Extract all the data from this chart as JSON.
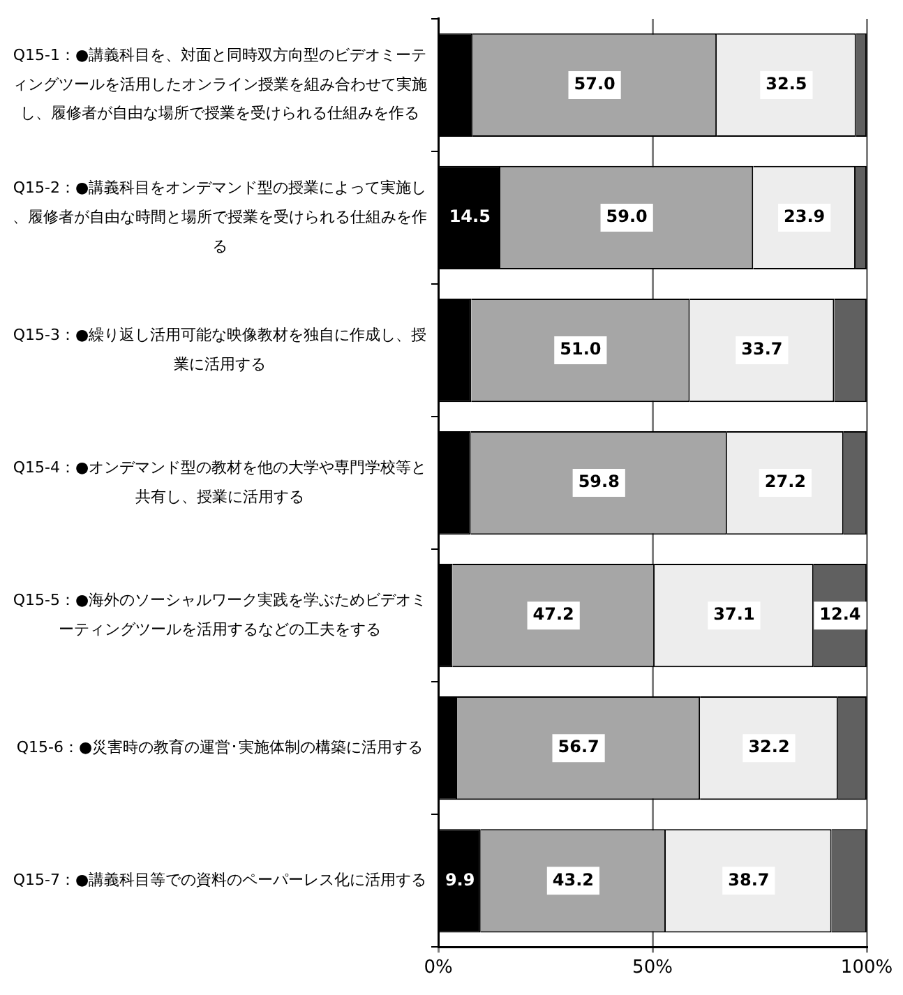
{
  "chart_data": {
    "type": "bar",
    "orientation": "horizontal",
    "stacked": true,
    "categories": [
      "Q15-1：●講義科目を、対面と同時双方向型のビデオミーティングツールを活用したオンライン授業を組み合わせて実施し、履修者が自由な場所で授業を受けられる仕組みを作る",
      "Q15-2：●講義科目をオンデマンド型の授業によって実施し、履修者が自由な時間と場所で授業を受けられる仕組みを作る",
      "Q15-3：●繰り返し活用可能な映像教材を独自に作成し、授業に活用する",
      "Q15-4：●オンデマンド型の教材を他の大学や専門学校等と共有し、授業に活用する",
      "Q15-5：●海外のソーシャルワーク実践を学ぶためビデオミーティングツールを活用するなどの工夫をする",
      "Q15-6：●災害時の教育の運営･実施体制の構築に活用する",
      "Q15-7：●講義科目等での資料のペーパーレス化に活用する"
    ],
    "series": [
      {
        "color": "#000000",
        "values": [
          8.0,
          14.5,
          7.7,
          7.6,
          3.3,
          4.4,
          9.9
        ],
        "value_labels": [
          null,
          "14.5",
          null,
          null,
          null,
          null,
          "9.9"
        ]
      },
      {
        "color": "#a6a6a6",
        "values": [
          57.0,
          59.0,
          51.0,
          59.8,
          47.2,
          56.7,
          43.2
        ],
        "value_labels": [
          "57.0",
          "59.0",
          "51.0",
          "59.8",
          "47.2",
          "56.7",
          "43.2"
        ]
      },
      {
        "color": "#ededed",
        "values": [
          32.5,
          23.9,
          33.7,
          27.2,
          37.1,
          32.2,
          38.7
        ],
        "value_labels": [
          "32.5",
          "23.9",
          "33.7",
          "27.2",
          "37.1",
          "32.2",
          "38.7"
        ]
      },
      {
        "color": "#606060",
        "values": [
          2.5,
          2.6,
          7.6,
          5.4,
          12.4,
          6.7,
          8.2
        ],
        "value_labels": [
          null,
          null,
          null,
          null,
          "12.4",
          null,
          null
        ]
      }
    ],
    "xlim": [
      0,
      100
    ],
    "xticks": [
      {
        "value": 0,
        "label": "0%"
      },
      {
        "value": 50,
        "label": "50%"
      },
      {
        "value": 100,
        "label": "100%"
      }
    ],
    "grid": "x",
    "legend": false
  }
}
